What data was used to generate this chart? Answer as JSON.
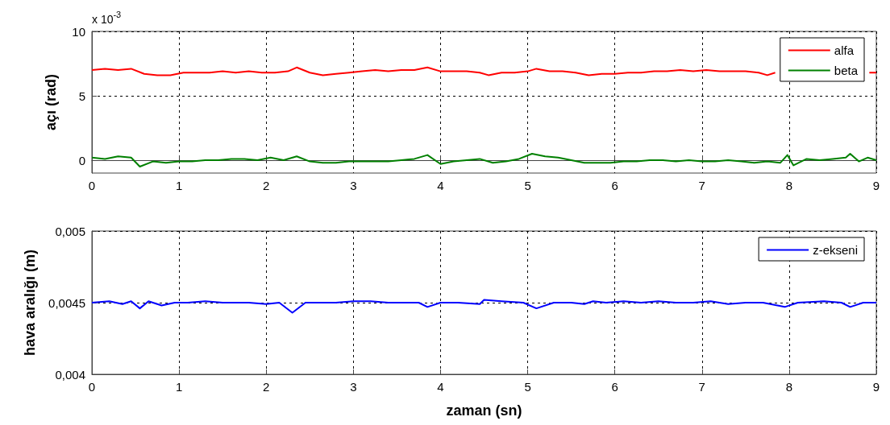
{
  "chart_data": [
    {
      "type": "line",
      "ylabel": "açı (rad)",
      "annotations": [
        "x 10$^{-3}$"
      ],
      "xlim": [
        0,
        9
      ],
      "xticks": [
        0,
        1,
        2,
        3,
        4,
        5,
        6,
        7,
        8,
        9
      ],
      "ylim": [
        -1,
        10
      ],
      "yticks": [
        0,
        5,
        10
      ],
      "grid": true,
      "legend": "top right",
      "series": [
        {
          "name": "alfa",
          "color": "#ff0000",
          "x": [
            0,
            0.15,
            0.3,
            0.45,
            0.6,
            0.75,
            0.9,
            1.05,
            1.2,
            1.35,
            1.5,
            1.65,
            1.8,
            1.95,
            2.1,
            2.25,
            2.35,
            2.5,
            2.65,
            2.8,
            2.95,
            3.1,
            3.25,
            3.4,
            3.55,
            3.7,
            3.85,
            4.0,
            4.15,
            4.3,
            4.45,
            4.55,
            4.7,
            4.85,
            5.0,
            5.1,
            5.25,
            5.4,
            5.55,
            5.7,
            5.85,
            6.0,
            6.15,
            6.3,
            6.45,
            6.6,
            6.75,
            6.9,
            7.05,
            7.2,
            7.35,
            7.5,
            7.65,
            7.75,
            7.84,
            8.1,
            8.4,
            8.7,
            8.85,
            8.92,
            9.0
          ],
          "values": [
            7.0,
            7.1,
            7.0,
            7.1,
            6.7,
            6.6,
            6.6,
            6.8,
            6.8,
            6.8,
            6.9,
            6.8,
            6.9,
            6.8,
            6.8,
            6.9,
            7.2,
            6.8,
            6.6,
            6.7,
            6.8,
            6.9,
            7.0,
            6.9,
            7.0,
            7.0,
            7.2,
            6.9,
            6.9,
            6.9,
            6.8,
            6.6,
            6.8,
            6.8,
            6.9,
            7.1,
            6.9,
            6.9,
            6.8,
            6.6,
            6.7,
            6.7,
            6.8,
            6.8,
            6.9,
            6.9,
            7.0,
            6.9,
            7.0,
            6.9,
            6.9,
            6.9,
            6.8,
            6.6,
            6.8,
            null,
            null,
            null,
            null,
            6.8,
            6.8
          ]
        },
        {
          "name": "beta",
          "color": "#008000",
          "x": [
            0,
            0.15,
            0.3,
            0.45,
            0.55,
            0.7,
            0.85,
            1.0,
            1.15,
            1.3,
            1.45,
            1.6,
            1.75,
            1.9,
            2.05,
            2.2,
            2.35,
            2.5,
            2.65,
            2.8,
            2.95,
            3.1,
            3.25,
            3.4,
            3.55,
            3.7,
            3.85,
            4.0,
            4.15,
            4.3,
            4.45,
            4.6,
            4.75,
            4.9,
            5.05,
            5.2,
            5.35,
            5.5,
            5.65,
            5.8,
            5.95,
            6.1,
            6.25,
            6.4,
            6.55,
            6.7,
            6.85,
            7.0,
            7.15,
            7.3,
            7.45,
            7.6,
            7.75,
            7.9,
            7.98,
            8.05,
            8.2,
            8.35,
            8.5,
            8.65,
            8.7,
            8.8,
            8.9,
            9.0
          ],
          "values": [
            0.2,
            0.1,
            0.3,
            0.2,
            -0.5,
            -0.1,
            -0.2,
            -0.1,
            -0.1,
            0.0,
            0.0,
            0.1,
            0.1,
            0.0,
            0.2,
            0.0,
            0.3,
            -0.1,
            -0.2,
            -0.2,
            -0.1,
            -0.1,
            -0.1,
            -0.1,
            0.0,
            0.1,
            0.4,
            -0.3,
            -0.1,
            0.0,
            0.1,
            -0.2,
            -0.1,
            0.1,
            0.5,
            0.3,
            0.2,
            0.0,
            -0.2,
            -0.2,
            -0.2,
            -0.1,
            -0.1,
            0.0,
            0.0,
            -0.1,
            0.0,
            -0.1,
            -0.1,
            0.0,
            -0.1,
            -0.2,
            -0.1,
            -0.2,
            0.4,
            -0.4,
            0.1,
            0.0,
            0.1,
            0.2,
            0.5,
            -0.1,
            0.2,
            0.0
          ]
        }
      ]
    },
    {
      "type": "line",
      "xlabel": "zaman (sn)",
      "ylabel": "hava aralığı (m)",
      "xlim": [
        0,
        9
      ],
      "xticks": [
        0,
        1,
        2,
        3,
        4,
        5,
        6,
        7,
        8,
        9
      ],
      "ylim": [
        0.004,
        0.005
      ],
      "yticks": [
        {
          "value": 0.004,
          "label": "0,004"
        },
        {
          "value": 0.0045,
          "label": "0,0045"
        },
        {
          "value": 0.005,
          "label": "0,005"
        }
      ],
      "grid": true,
      "legend": "top right",
      "series": [
        {
          "name": "z-ekseni",
          "color": "#0000ff",
          "x": [
            0,
            0.2,
            0.35,
            0.45,
            0.55,
            0.65,
            0.8,
            0.95,
            1.1,
            1.3,
            1.5,
            1.8,
            2.0,
            2.15,
            2.3,
            2.45,
            2.6,
            2.8,
            3.0,
            3.2,
            3.4,
            3.6,
            3.75,
            3.85,
            4.0,
            4.2,
            4.45,
            4.5,
            4.7,
            4.95,
            5.1,
            5.3,
            5.5,
            5.65,
            5.75,
            5.9,
            6.1,
            6.3,
            6.5,
            6.7,
            6.9,
            7.1,
            7.3,
            7.5,
            7.7,
            7.95,
            8.1,
            8.4,
            8.6,
            8.7,
            8.85,
            9.0
          ],
          "values": [
            0.0045,
            0.00451,
            0.00449,
            0.00451,
            0.00446,
            0.00451,
            0.00448,
            0.0045,
            0.0045,
            0.00451,
            0.0045,
            0.0045,
            0.00449,
            0.0045,
            0.00443,
            0.0045,
            0.0045,
            0.0045,
            0.00451,
            0.00451,
            0.0045,
            0.0045,
            0.0045,
            0.00447,
            0.0045,
            0.0045,
            0.00449,
            0.00452,
            0.00451,
            0.0045,
            0.00446,
            0.0045,
            0.0045,
            0.00449,
            0.00451,
            0.0045,
            0.00451,
            0.0045,
            0.00451,
            0.0045,
            0.0045,
            0.00451,
            0.00449,
            0.0045,
            0.0045,
            0.00447,
            0.0045,
            0.00451,
            0.0045,
            0.00447,
            0.0045,
            0.0045
          ]
        }
      ]
    }
  ]
}
